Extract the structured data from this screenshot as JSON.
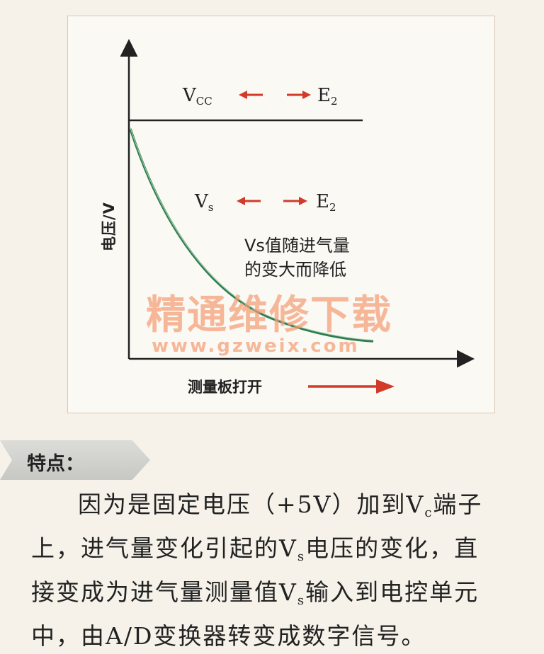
{
  "diagram": {
    "ylabel": "电压/V",
    "xlabel": "测量板打开",
    "vcc": {
      "main": "V",
      "sub": "CC",
      "e_main": "E",
      "e_sub": "2"
    },
    "vs": {
      "main": "V",
      "sub": "s",
      "e_main": "E",
      "e_sub": "2"
    },
    "note_line1": "Vs值随进气量",
    "note_line2": "的变大而降低",
    "watermark_cn": "精通维修下载",
    "watermark_url": "www.gzweix.com",
    "colors": {
      "curve": "#2e7d4f",
      "arrow": "#d23a2a",
      "axis": "#222222"
    }
  },
  "feature": {
    "title": "特点：",
    "line1_a": "因为是固定电压（+5V）加到V",
    "line1_sub": "c",
    "line1_b": "端子",
    "line2_a": "上，进气量变化引起的V",
    "line2_sub": "s",
    "line2_b": "电压的变化，直",
    "line3_a": "接变成为进气量测量值V",
    "line3_sub": "s",
    "line3_b": "输入到电控单元",
    "line4": "中，由A/D变换器转变成数字信号。"
  }
}
